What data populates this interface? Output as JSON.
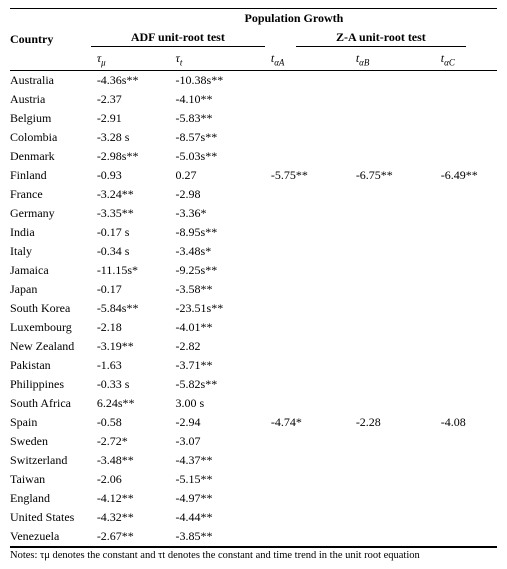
{
  "header": {
    "group_label": "Population Growth",
    "country_label": "Country",
    "adf_label": "ADF unit-root test",
    "za_label": "Z-A unit-root test",
    "sym_adf1_main": "τ",
    "sym_adf1_sub": "μ",
    "sym_adf2_main": "τ",
    "sym_adf2_sub": "t",
    "sym_za1_main": "t",
    "sym_za1_sub": "αA",
    "sym_za2_main": "t",
    "sym_za2_sub": "αB",
    "sym_za3_main": "t",
    "sym_za3_sub": "αC"
  },
  "rows": [
    {
      "country": "Australia",
      "adf1": "-4.36s**",
      "adf2": "-10.38s**",
      "za1": "",
      "za2": "",
      "za3": ""
    },
    {
      "country": "Austria",
      "adf1": "-2.37",
      "adf2": "-4.10**",
      "za1": "",
      "za2": "",
      "za3": ""
    },
    {
      "country": "Belgium",
      "adf1": "-2.91",
      "adf2": "-5.83**",
      "za1": "",
      "za2": "",
      "za3": ""
    },
    {
      "country": "Colombia",
      "adf1": "-3.28 s",
      "adf2": "-8.57s**",
      "za1": "",
      "za2": "",
      "za3": ""
    },
    {
      "country": "Denmark",
      "adf1": "-2.98s**",
      "adf2": "-5.03s**",
      "za1": "",
      "za2": "",
      "za3": ""
    },
    {
      "country": "Finland",
      "adf1": "-0.93",
      "adf2": " 0.27",
      "za1": "-5.75**",
      "za2": "-6.75**",
      "za3": "-6.49**"
    },
    {
      "country": "France",
      "adf1": "-3.24**",
      "adf2": "-2.98",
      "za1": "",
      "za2": "",
      "za3": ""
    },
    {
      "country": "Germany",
      "adf1": "-3.35**",
      "adf2": "-3.36*",
      "za1": "",
      "za2": "",
      "za3": ""
    },
    {
      "country": "India",
      "adf1": "-0.17 s",
      "adf2": "-8.95s**",
      "za1": "",
      "za2": "",
      "za3": ""
    },
    {
      "country": "Italy",
      "adf1": "-0.34 s",
      "adf2": "-3.48s*",
      "za1": "",
      "za2": "",
      "za3": ""
    },
    {
      "country": "Jamaica",
      "adf1": "-11.15s*",
      "adf2": "-9.25s**",
      "za1": "",
      "za2": "",
      "za3": ""
    },
    {
      "country": "Japan",
      "adf1": "-0.17",
      "adf2": "-3.58**",
      "za1": "",
      "za2": "",
      "za3": ""
    },
    {
      "country": "South Korea",
      "adf1": "-5.84s**",
      "adf2": "-23.51s**",
      "za1": "",
      "za2": "",
      "za3": ""
    },
    {
      "country": "Luxembourg",
      "adf1": "-2.18",
      "adf2": "-4.01**",
      "za1": "",
      "za2": "",
      "za3": ""
    },
    {
      "country": "New Zealand",
      "adf1": "-3.19**",
      "adf2": "-2.82",
      "za1": "",
      "za2": "",
      "za3": ""
    },
    {
      "country": "Pakistan",
      "adf1": "-1.63",
      "adf2": "-3.71**",
      "za1": "",
      "za2": "",
      "za3": ""
    },
    {
      "country": "Philippines",
      "adf1": "-0.33 s",
      "adf2": "-5.82s**",
      "za1": "",
      "za2": "",
      "za3": ""
    },
    {
      "country": "South Africa",
      "adf1": " 6.24s**",
      "adf2": " 3.00 s",
      "za1": "",
      "za2": "",
      "za3": ""
    },
    {
      "country": "Spain",
      "adf1": "-0.58",
      "adf2": "-2.94",
      "za1": "-4.74*",
      "za2": "-2.28",
      "za3": "-4.08"
    },
    {
      "country": "Sweden",
      "adf1": "-2.72*",
      "adf2": "-3.07",
      "za1": "",
      "za2": "",
      "za3": ""
    },
    {
      "country": "Switzerland",
      "adf1": "-3.48**",
      "adf2": "-4.37**",
      "za1": "",
      "za2": "",
      "za3": ""
    },
    {
      "country": "Taiwan",
      "adf1": "-2.06",
      "adf2": "-5.15**",
      "za1": "",
      "za2": "",
      "za3": ""
    },
    {
      "country": "England",
      "adf1": "-4.12**",
      "adf2": "-4.97**",
      "za1": "",
      "za2": "",
      "za3": ""
    },
    {
      "country": "United States",
      "adf1": "-4.32**",
      "adf2": "-4.44**",
      "za1": "",
      "za2": "",
      "za3": ""
    },
    {
      "country": "Venezuela",
      "adf1": "-2.67**",
      "adf2": "-3.85**",
      "za1": "",
      "za2": "",
      "za3": ""
    }
  ],
  "notes": "Notes:  τμ  denotes the constant and  τt  denotes the constant and time trend in the unit root equation"
}
